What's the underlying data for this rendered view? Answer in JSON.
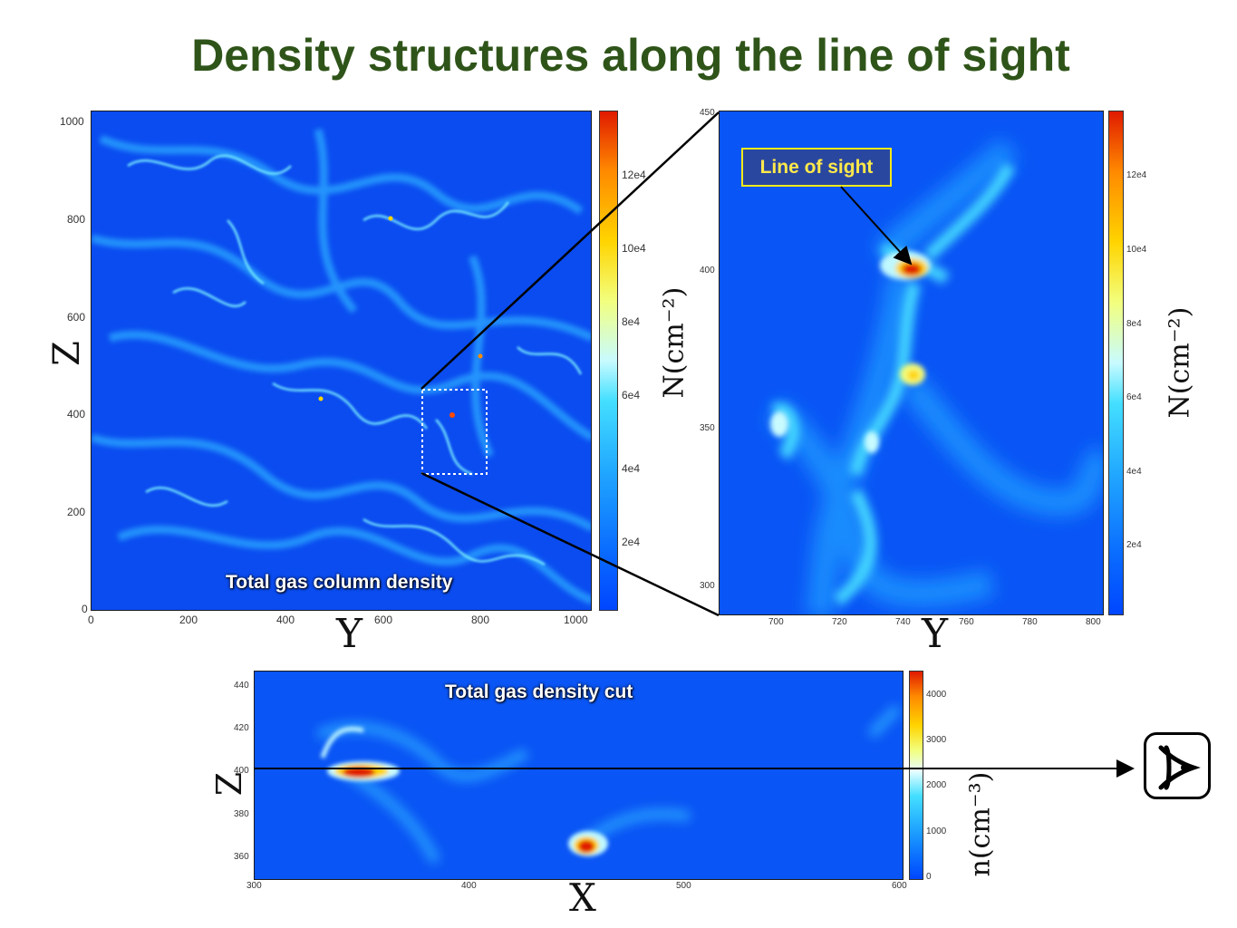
{
  "title": "Density structures along the line of sight",
  "panel_main": {
    "label": "Total gas column density",
    "x_axis": "Y",
    "y_axis": "Z",
    "x_ticks": [
      "0",
      "200",
      "400",
      "600",
      "800",
      "1000"
    ],
    "y_ticks": [
      "1000",
      "800",
      "600",
      "400",
      "200",
      "0"
    ],
    "colorbar_ticks": [
      "12e4",
      "10e4",
      "8e4",
      "6e4",
      "4e4",
      "2e4"
    ],
    "colorbar_label": "N(cm⁻²)"
  },
  "panel_zoom": {
    "callout": "Line of sight",
    "x_axis": "Y",
    "x_ticks": [
      "700",
      "720",
      "740",
      "760",
      "780",
      "800"
    ],
    "y_ticks": [
      "450",
      "400",
      "350",
      "300"
    ],
    "colorbar_ticks": [
      "12e4",
      "10e4",
      "8e4",
      "6e4",
      "4e4",
      "2e4"
    ],
    "colorbar_label": "N(cm⁻²)"
  },
  "panel_cut": {
    "label": "Total gas density cut",
    "x_axis": "X",
    "y_axis": "Z",
    "x_ticks": [
      "300",
      "400",
      "500",
      "600"
    ],
    "y_ticks": [
      "440",
      "420",
      "400",
      "380",
      "360"
    ],
    "colorbar_ticks": [
      "4000",
      "3000",
      "2000",
      "1000",
      "0"
    ],
    "colorbar_label": "n(cm⁻³)"
  },
  "colors": {
    "title": "#2f5419",
    "background_map": "#0b4cf0",
    "callout_border": "#f4ea19",
    "callout_text": "#ffe94a"
  },
  "icons": {
    "observer": "eye-icon"
  }
}
